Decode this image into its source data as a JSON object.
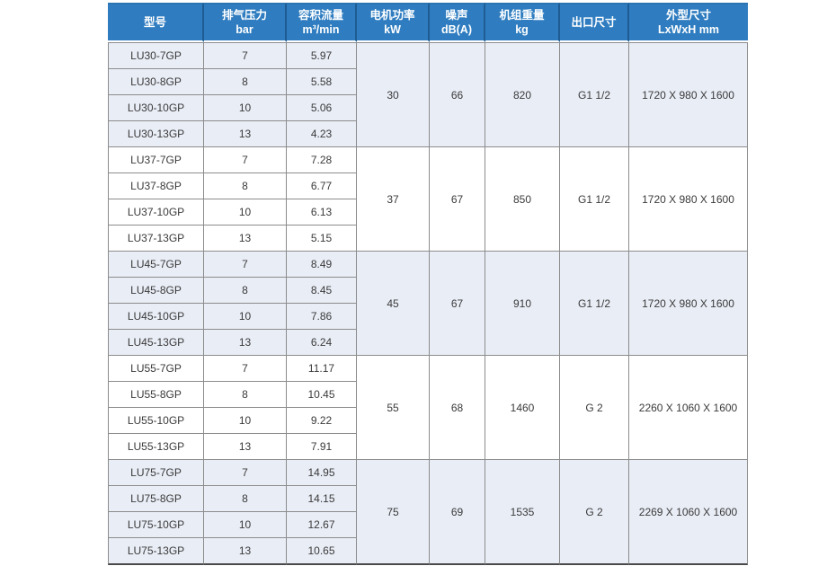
{
  "colors": {
    "header_bg": "#2f7dc0",
    "header_divider": "#1e5c93",
    "group_tint": "#e9edf6",
    "grid_line": "#8c8c8c",
    "bottom_edge": "#4a4a4a",
    "header_text": "#ffffff",
    "body_text": "#3a3a3a"
  },
  "table": {
    "headers": [
      {
        "title": "型号",
        "sub": ""
      },
      {
        "title": "排气压力",
        "sub": "bar"
      },
      {
        "title": "容积流量",
        "sub": "m³/min"
      },
      {
        "title": "电机功率",
        "sub": "kW"
      },
      {
        "title": "噪声",
        "sub": "dB(A)"
      },
      {
        "title": "机组重量",
        "sub": "kg"
      },
      {
        "title": "出口尺寸",
        "sub": ""
      },
      {
        "title": "外型尺寸",
        "sub": "LxWxH mm"
      }
    ],
    "groups": [
      {
        "power_kw": "30",
        "noise_db": "66",
        "weight_kg": "820",
        "outlet": "G1 1/2",
        "dimensions": "1720 X 980 X 1600",
        "rows": [
          {
            "model": "LU30-7GP",
            "pressure": "7",
            "flow": "5.97"
          },
          {
            "model": "LU30-8GP",
            "pressure": "8",
            "flow": "5.58"
          },
          {
            "model": "LU30-10GP",
            "pressure": "10",
            "flow": "5.06"
          },
          {
            "model": "LU30-13GP",
            "pressure": "13",
            "flow": "4.23"
          }
        ]
      },
      {
        "power_kw": "37",
        "noise_db": "67",
        "weight_kg": "850",
        "outlet": "G1 1/2",
        "dimensions": "1720 X 980 X 1600",
        "rows": [
          {
            "model": "LU37-7GP",
            "pressure": "7",
            "flow": "7.28"
          },
          {
            "model": "LU37-8GP",
            "pressure": "8",
            "flow": "6.77"
          },
          {
            "model": "LU37-10GP",
            "pressure": "10",
            "flow": "6.13"
          },
          {
            "model": "LU37-13GP",
            "pressure": "13",
            "flow": "5.15"
          }
        ]
      },
      {
        "power_kw": "45",
        "noise_db": "67",
        "weight_kg": "910",
        "outlet": "G1 1/2",
        "dimensions": "1720 X 980 X 1600",
        "rows": [
          {
            "model": "LU45-7GP",
            "pressure": "7",
            "flow": "8.49"
          },
          {
            "model": "LU45-8GP",
            "pressure": "8",
            "flow": "8.45"
          },
          {
            "model": "LU45-10GP",
            "pressure": "10",
            "flow": "7.86"
          },
          {
            "model": "LU45-13GP",
            "pressure": "13",
            "flow": "6.24"
          }
        ]
      },
      {
        "power_kw": "55",
        "noise_db": "68",
        "weight_kg": "1460",
        "outlet": "G 2",
        "dimensions": "2260 X 1060 X 1600",
        "rows": [
          {
            "model": "LU55-7GP",
            "pressure": "7",
            "flow": "11.17"
          },
          {
            "model": "LU55-8GP",
            "pressure": "8",
            "flow": "10.45"
          },
          {
            "model": "LU55-10GP",
            "pressure": "10",
            "flow": "9.22"
          },
          {
            "model": "LU55-13GP",
            "pressure": "13",
            "flow": "7.91"
          }
        ]
      },
      {
        "power_kw": "75",
        "noise_db": "69",
        "weight_kg": "1535",
        "outlet": "G 2",
        "dimensions": "2269 X 1060 X 1600",
        "rows": [
          {
            "model": "LU75-7GP",
            "pressure": "7",
            "flow": "14.95"
          },
          {
            "model": "LU75-8GP",
            "pressure": "8",
            "flow": "14.15"
          },
          {
            "model": "LU75-10GP",
            "pressure": "10",
            "flow": "12.67"
          },
          {
            "model": "LU75-13GP",
            "pressure": "13",
            "flow": "10.65"
          }
        ]
      }
    ]
  }
}
